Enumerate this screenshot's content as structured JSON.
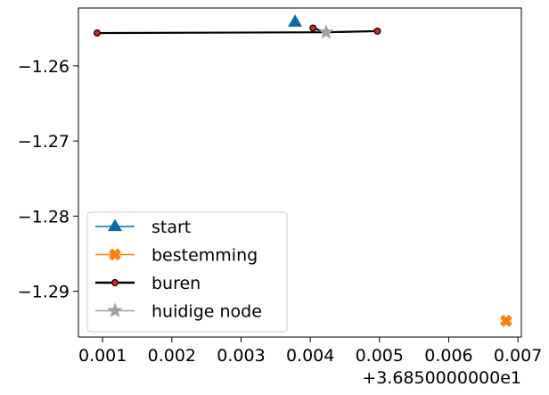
{
  "chart_data": {
    "type": "line",
    "title": "",
    "xlabel": "",
    "ylabel": "",
    "x_offset_label": "+3.6850000000e1",
    "xlim": [
      0.00065,
      0.00705
    ],
    "ylim": [
      -1.2961,
      -1.2523
    ],
    "grid": false,
    "legend_position": "lower-left",
    "x_ticks": [
      {
        "value": 0.001,
        "label": "0.001"
      },
      {
        "value": 0.002,
        "label": "0.002"
      },
      {
        "value": 0.003,
        "label": "0.003"
      },
      {
        "value": 0.004,
        "label": "0.004"
      },
      {
        "value": 0.005,
        "label": "0.005"
      },
      {
        "value": 0.006,
        "label": "0.006"
      },
      {
        "value": 0.007,
        "label": "0.007"
      }
    ],
    "y_ticks": [
      {
        "value": -1.26,
        "label": "−1.26"
      },
      {
        "value": -1.27,
        "label": "−1.27"
      },
      {
        "value": -1.28,
        "label": "−1.28"
      },
      {
        "value": -1.29,
        "label": "−1.29"
      }
    ],
    "series": [
      {
        "name": "start",
        "kind": "marker",
        "marker": "triangle",
        "color": "#0a6aa8",
        "points": [
          {
            "x": 0.00378,
            "y": -1.25416
          }
        ]
      },
      {
        "name": "bestemming",
        "kind": "marker",
        "marker": "x-filled",
        "color": "#ff7f0e",
        "points": [
          {
            "x": 0.00683,
            "y": -1.29394
          }
        ]
      },
      {
        "name": "buren",
        "kind": "line",
        "marker": "circle",
        "color": "#000000",
        "marker_color": "#d62728",
        "segments": [
          [
            {
              "x": 0.00092,
              "y": -1.25563
            },
            {
              "x": 0.00423,
              "y": -1.25553
            }
          ],
          [
            {
              "x": 0.00423,
              "y": -1.25553
            },
            {
              "x": 0.00497,
              "y": -1.25537
            }
          ],
          [
            {
              "x": 0.00423,
              "y": -1.25553
            },
            {
              "x": 0.00404,
              "y": -1.25497
            }
          ]
        ],
        "points": [
          {
            "x": 0.00092,
            "y": -1.25563
          },
          {
            "x": 0.00404,
            "y": -1.25497
          },
          {
            "x": 0.00497,
            "y": -1.25537
          }
        ]
      },
      {
        "name": "huidige node",
        "kind": "marker",
        "marker": "star",
        "color": "#a0a0a0",
        "points": [
          {
            "x": 0.00423,
            "y": -1.25553
          }
        ]
      }
    ]
  }
}
